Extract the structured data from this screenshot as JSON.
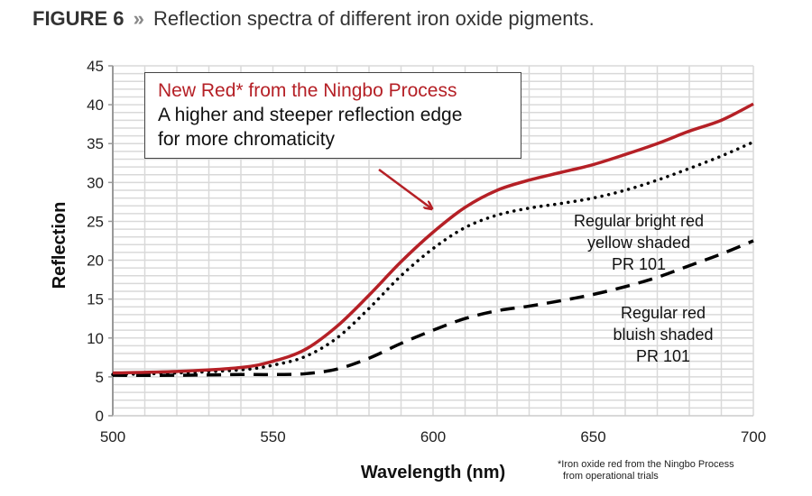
{
  "title": {
    "figure": "FIGURE 6",
    "separator": "»",
    "text": "Reflection spectra of different iron oxide pigments."
  },
  "callout": {
    "line1": "New Red* from the Ningbo Process",
    "line2": "A higher and steeper reflection edge",
    "line3": "for more chromaticity"
  },
  "annotations": {
    "bright_red": [
      "Regular bright red",
      "yellow shaded",
      "PR 101"
    ],
    "bluish_red": [
      "Regular red",
      "bluish shaded",
      "PR 101"
    ]
  },
  "footnote": {
    "line1": "*Iron oxide red from the Ningbo Process",
    "line2": "from operational trials"
  },
  "colors": {
    "new_red": "#b52026",
    "regular": "#000000",
    "grid": "#d9d9d9",
    "axis": "#999999"
  },
  "chart_data": {
    "type": "line",
    "title": "Reflection spectra of different iron oxide pigments.",
    "xlabel": "Wavelength (nm)",
    "ylabel": "Reflection",
    "xlim": [
      500,
      700
    ],
    "ylim": [
      0,
      45
    ],
    "xticks": [
      500,
      550,
      600,
      650,
      700
    ],
    "yticks": [
      0,
      5,
      10,
      15,
      20,
      25,
      30,
      35,
      40,
      45
    ],
    "grid": true,
    "grid_minor": {
      "x_step": 10,
      "y_step": 1
    },
    "x": [
      500,
      520,
      540,
      550,
      560,
      570,
      580,
      590,
      600,
      610,
      620,
      630,
      640,
      650,
      660,
      670,
      680,
      690,
      700
    ],
    "series": [
      {
        "name": "New Red* from the Ningbo Process",
        "style": "solid",
        "color": "#b52026",
        "values": [
          5.5,
          5.7,
          6.2,
          7.0,
          8.5,
          11.5,
          15.5,
          19.8,
          23.6,
          26.8,
          29.0,
          30.3,
          31.3,
          32.3,
          33.6,
          35.0,
          36.6,
          38.0,
          40.1
        ]
      },
      {
        "name": "Regular bright red yellow shaded PR 101",
        "style": "dotted",
        "color": "#000000",
        "values": [
          5.3,
          5.5,
          5.9,
          6.5,
          7.6,
          10.0,
          13.8,
          18.0,
          21.5,
          24.2,
          25.8,
          26.7,
          27.3,
          28.0,
          29.0,
          30.3,
          31.8,
          33.4,
          35.2
        ]
      },
      {
        "name": "Regular red bluish shaded PR 101",
        "style": "dashed",
        "color": "#000000",
        "values": [
          5.2,
          5.2,
          5.3,
          5.3,
          5.4,
          6.0,
          7.4,
          9.3,
          11.0,
          12.5,
          13.5,
          14.1,
          14.8,
          15.6,
          16.6,
          17.8,
          19.3,
          20.8,
          22.5
        ]
      }
    ]
  }
}
